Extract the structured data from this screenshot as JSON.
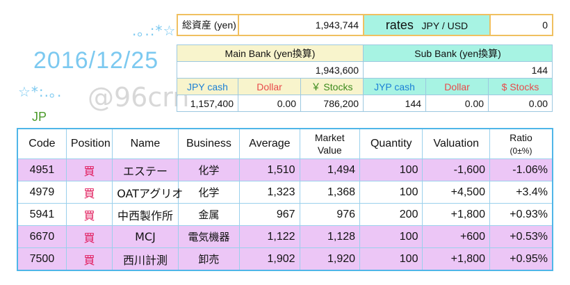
{
  "header": {
    "deco_top": ".｡.:*☆",
    "deco_bottom": "☆*:.｡.",
    "date": "2016/12/25",
    "watermark": "@96crn",
    "country": "JP"
  },
  "summary": {
    "total_label": "総資産 (yen)",
    "total_value": "1,943,744",
    "rates_label": "rates",
    "rates_pair": "JPY / USD",
    "rates_value": "0"
  },
  "banks": {
    "main": {
      "title": "Main Bank (yen換算)",
      "total": "1,943,600",
      "col1": "JPY cash",
      "col2": "Dollar",
      "col3": "￥ Stocks",
      "val1": "1,157,400",
      "val2": "0.00",
      "val3": "786,200"
    },
    "sub": {
      "title": "Sub Bank (yen換算)",
      "total": "144",
      "col1": "JYP cash",
      "col2": "Dollar",
      "col3": "$ Stocks",
      "val1": "144",
      "val2": "0.00",
      "val3": "0.00"
    }
  },
  "holdings": {
    "headers": {
      "code": "Code",
      "position": "Position",
      "name": "Name",
      "business": "Business",
      "average": "Average",
      "market_line1": "Market",
      "market_line2": "Value",
      "quantity": "Quantity",
      "valuation": "Valuation",
      "ratio_line1": "Ratio",
      "ratio_line2": "(0±%)"
    },
    "rows": [
      {
        "code": "4951",
        "position": "買",
        "name": "エステー",
        "business": "化学",
        "average": "1,510",
        "market": "1,494",
        "quantity": "100",
        "valuation": "-1,600",
        "ratio": "-1.06%"
      },
      {
        "code": "4979",
        "position": "買",
        "name": "OATアグリオ",
        "business": "化学",
        "average": "1,323",
        "market": "1,368",
        "quantity": "100",
        "valuation": "+4,500",
        "ratio": "+3.4%"
      },
      {
        "code": "5941",
        "position": "買",
        "name": "中西製作所",
        "business": "金属",
        "average": "967",
        "market": "976",
        "quantity": "200",
        "valuation": "+1,800",
        "ratio": "+0.93%"
      },
      {
        "code": "6670",
        "position": "買",
        "name": "MCJ",
        "business": "電気機器",
        "average": "1,122",
        "market": "1,128",
        "quantity": "100",
        "valuation": "+600",
        "ratio": "+0.53%"
      },
      {
        "code": "7500",
        "position": "買",
        "name": "西川計測",
        "business": "卸売",
        "average": "1,902",
        "market": "1,920",
        "quantity": "100",
        "valuation": "+1,800",
        "ratio": "+0.95%"
      }
    ]
  },
  "colors": {
    "accent_blue": "#7cc9f0",
    "row_pink": "#ecc6f6",
    "mint": "#a7f3e3",
    "cream": "#f8f4cc",
    "buy_red": "#e0185a"
  }
}
